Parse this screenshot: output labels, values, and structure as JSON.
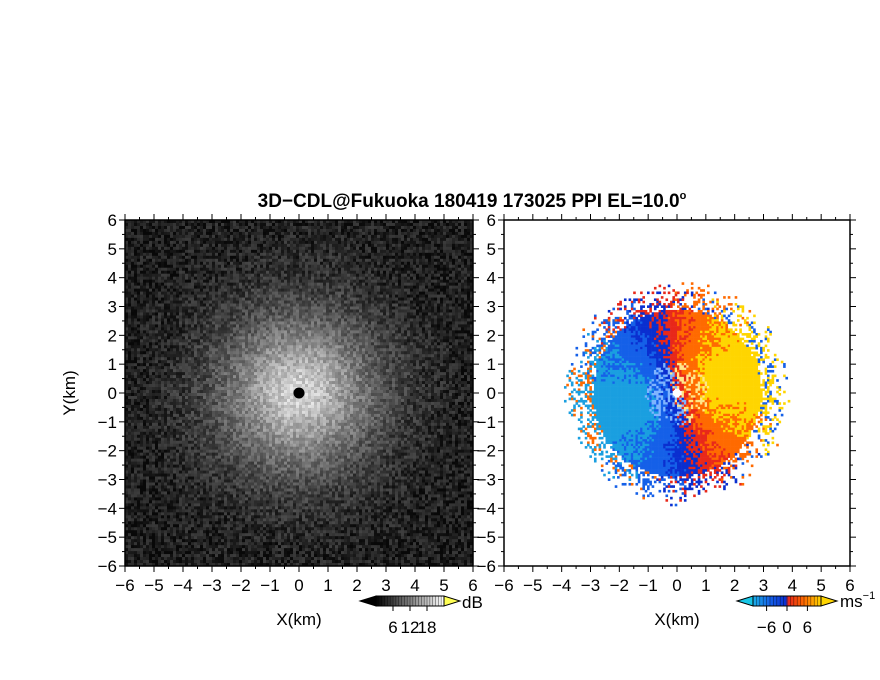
{
  "title": {
    "text": "3D−CDL@Fukuoka 180419 173025 PPI EL=10.0",
    "degree": "o"
  },
  "chart_data": [
    {
      "type": "heatmap",
      "panel": "left",
      "description_quantity": "signal intensity (grayscale)",
      "xlabel": "X(km)",
      "ylabel": "Y(km)",
      "xlim": [
        -6,
        6
      ],
      "ylim": [
        -6,
        6
      ],
      "x_ticks": [
        "−6",
        "−5",
        "−4",
        "−3",
        "−2",
        "−1",
        "0",
        "1",
        "2",
        "3",
        "4",
        "5",
        "6"
      ],
      "y_ticks": [
        "−6",
        "−5",
        "−4",
        "−3",
        "−2",
        "−1",
        "0",
        "1",
        "2",
        "3",
        "4",
        "5",
        "6"
      ],
      "colorbar": {
        "unit": "dB",
        "ticks": [
          "6",
          "12",
          "18"
        ],
        "tick_values": [
          6,
          12,
          18
        ],
        "range": [
          0,
          24
        ],
        "colormap": "grayscale",
        "extend": "both"
      },
      "pattern": "noise field brightest at centre, decaying radially with range; blanked disc at origin",
      "center_blank_radius_km": 0.2
    },
    {
      "type": "heatmap",
      "panel": "right",
      "description_quantity": "Doppler radial velocity",
      "xlabel": "X(km)",
      "xlim": [
        -6,
        6
      ],
      "ylim": [
        -6,
        6
      ],
      "x_ticks": [
        "−6",
        "−5",
        "−4",
        "−3",
        "−2",
        "−1",
        "0",
        "1",
        "2",
        "3",
        "4",
        "5",
        "6"
      ],
      "y_ticks": [
        "−6",
        "−5",
        "−4",
        "−3",
        "−2",
        "−1",
        "0",
        "1",
        "2",
        "3",
        "4",
        "5",
        "6"
      ],
      "colorbar": {
        "unit": "ms",
        "unit_exponent": "−1",
        "ticks": [
          "−6",
          "0",
          "6"
        ],
        "tick_values": [
          -6,
          0,
          6
        ],
        "range": [
          -10,
          10
        ],
        "colors": [
          "#1a9fe0",
          "#1560e8",
          "#0a2fd0",
          "#e8281a",
          "#ff6a00",
          "#ffd500"
        ],
        "extend": "both"
      },
      "pattern": "approaching (blue) velocities west of radar, receding (orange/yellow) east; valid data within about 3.5 km range",
      "data_extent_km": 3.5
    }
  ]
}
